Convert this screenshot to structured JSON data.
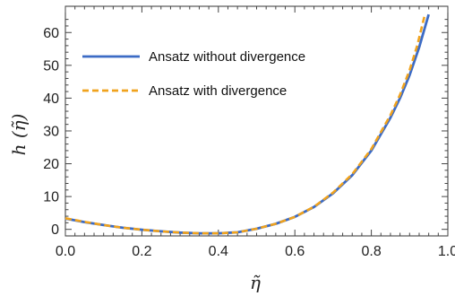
{
  "chart_data": {
    "type": "line",
    "xlabel": "η̃",
    "ylabel": "h (η̃)",
    "xlim": [
      0.0,
      1.0
    ],
    "ylim": [
      -2,
      68
    ],
    "x_ticks": [
      "0.0",
      "0.2",
      "0.4",
      "0.6",
      "0.8",
      "1.0"
    ],
    "y_ticks": [
      "0",
      "10",
      "20",
      "30",
      "40",
      "50",
      "60"
    ],
    "legend_position": "top-left",
    "grid": false,
    "series": [
      {
        "name": "Ansatz without divergence",
        "color": "#3c6bc5",
        "dash": "solid",
        "x": [
          0.0,
          0.05,
          0.1,
          0.15,
          0.2,
          0.25,
          0.3,
          0.35,
          0.4,
          0.45,
          0.5,
          0.55,
          0.6,
          0.65,
          0.7,
          0.75,
          0.8,
          0.85,
          0.875,
          0.9,
          0.925,
          0.95
        ],
        "y": [
          3.3,
          2.2,
          1.3,
          0.5,
          -0.1,
          -0.6,
          -1.0,
          -1.2,
          -1.2,
          -0.9,
          0.2,
          1.7,
          3.8,
          6.8,
          11.0,
          16.5,
          24.0,
          34.0,
          40.0,
          47.0,
          55.5,
          65.5
        ]
      },
      {
        "name": "Ansatz with divergence",
        "color": "#f0a31e",
        "dash": "dashed",
        "x": [
          0.0,
          0.05,
          0.1,
          0.15,
          0.2,
          0.25,
          0.3,
          0.35,
          0.4,
          0.45,
          0.5,
          0.55,
          0.6,
          0.65,
          0.7,
          0.75,
          0.8,
          0.85,
          0.875,
          0.9,
          0.92,
          0.94
        ],
        "y": [
          3.4,
          2.3,
          1.3,
          0.5,
          -0.1,
          -0.6,
          -1.0,
          -1.2,
          -1.2,
          -0.9,
          0.2,
          1.7,
          3.8,
          6.9,
          11.2,
          16.8,
          24.5,
          34.8,
          41.0,
          48.5,
          56.0,
          65.5
        ]
      }
    ]
  }
}
